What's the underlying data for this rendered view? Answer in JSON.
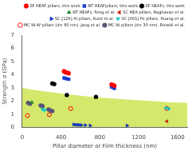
{
  "chart_data": {
    "type": "scatter",
    "xlabel": "Pillar diameter or Film thickness (nm)",
    "ylabel": "Strength σ (GPa)",
    "xlim": [
      0,
      1700
    ],
    "ylim": [
      0,
      7
    ],
    "xticks": [
      0,
      400,
      800,
      1200,
      1600
    ],
    "yticks": [
      0,
      1,
      2,
      3,
      4,
      5,
      6,
      7
    ],
    "grid": false,
    "legend": "upper right",
    "series": [
      {
        "type": "area",
        "color": "#d4e86b",
        "x": [
          0,
          100,
          300,
          500,
          700,
          900,
          1100,
          1300,
          1500,
          1700
        ],
        "values": [
          3.0,
          2.85,
          2.65,
          2.48,
          2.32,
          2.2,
          2.1,
          2.0,
          1.9,
          1.85
        ],
        "lower": [
          0,
          0,
          0,
          0,
          0,
          0,
          0,
          0,
          0,
          0
        ]
      },
      {
        "name": "SF HEAF pillars, this work",
        "color": "red",
        "marker": "circle",
        "x": [
          430,
          440,
          460,
          480,
          920,
          940,
          950
        ],
        "values": [
          4.25,
          4.2,
          4.15,
          4.1,
          3.25,
          3.2,
          3.15
        ],
        "yerr": [
          0.13,
          0.13,
          0.13,
          0.13,
          0.1,
          0.1,
          0.1
        ]
      },
      {
        "name": "NT HEAFpillars, this work",
        "color": "#1a3cc8",
        "marker": "square",
        "x": [
          430,
          440,
          460,
          480,
          920,
          940,
          950
        ],
        "values": [
          3.75,
          3.72,
          3.68,
          3.64,
          3.05,
          3.0,
          2.95
        ]
      },
      {
        "name": "SF HEAFs, this work",
        "color": "black",
        "marker": "circle",
        "x": [
          310,
          330,
          460,
          760
        ],
        "values": [
          3.32,
          3.28,
          2.45,
          2.3
        ]
      },
      {
        "name": "NT HEAFs, Feng et al.",
        "color": "#228822",
        "marker": "triangle-up",
        "x": [
          100
        ],
        "values": [
          1.88
        ]
      },
      {
        "name": "SC HEA pillars, Raghavan et al.",
        "color": "#cc2200",
        "marker": "triangle-left",
        "x": [
          1490
        ],
        "values": [
          0.45
        ]
      },
      {
        "name": "SC [126] Al pillars, Kunz et al.",
        "color": "#1133bb",
        "marker": "triangle-right",
        "x": [
          530,
          550,
          570,
          590,
          610,
          650,
          700,
          1080
        ],
        "values": [
          0.2,
          0.19,
          0.18,
          0.17,
          0.16,
          0.15,
          0.13,
          0.12
        ]
      },
      {
        "name": "SC [001] Fe pillars, Huang et al.",
        "color": "#00cccc",
        "marker": "triangle-down",
        "x": [
          210,
          230,
          1480,
          1510
        ],
        "values": [
          1.35,
          1.3,
          1.45,
          1.4
        ]
      },
      {
        "name": "MC Ni-W pillars (d= 60 nm), Jang et al.",
        "color": "red",
        "marker": "circle-open",
        "x": [
          55,
          280,
          500,
          1490
        ],
        "values": [
          0.88,
          0.95,
          1.42,
          1.42
        ]
      },
      {
        "name": "MC Ni pillars (d= 30 nm), Rinaldi et al.",
        "color": "#555577",
        "marker": "circle",
        "x": [
          60,
          80,
          190,
          210,
          270,
          290,
          310
        ],
        "values": [
          1.85,
          1.78,
          1.65,
          1.6,
          1.35,
          1.28,
          1.22
        ]
      }
    ]
  }
}
